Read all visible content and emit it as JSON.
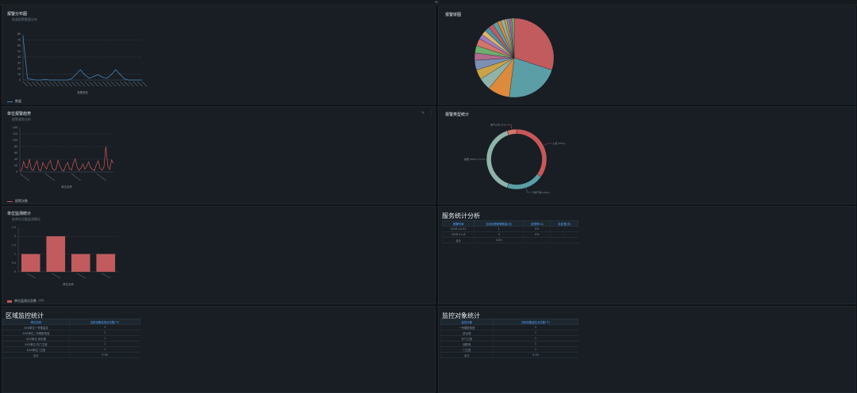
{
  "panels": {
    "alarm_distribution": {
      "title": "报警分布图",
      "subtitle": "各类报警数量分布",
      "xlabel": "报警类型",
      "legend": "数量"
    },
    "alarm_pie": {
      "title": "报警饼图"
    },
    "unit_alarm_trend": {
      "title": "单位报警趋势",
      "subtitle": "报警趋势分析",
      "xlabel": "单位名称",
      "legend": "报警次数"
    },
    "alarm_type_stats": {
      "title": "报警类型统计",
      "labels": [
        "火警 (35%)",
        "可燃气体 (20%)",
        "故障 (40%)",
        "电气火灾 (5%)"
      ]
    },
    "unit_monitor_stats": {
      "title": "单位监测统计",
      "subtitle": "各单位设备监测情况",
      "xlabel": "单位名称",
      "legend": "单位监测点总数（个）"
    },
    "service_stats": {
      "title": "服务统计分析",
      "headers": [
        "报警时间",
        "当前处理报警数量(次)",
        "处理率(%)",
        "未处理(次)"
      ],
      "rows": [
        [
          "2018-10-31",
          "1",
          "0%",
          "-"
        ],
        [
          "2018-11-6",
          "3",
          "0%",
          "-"
        ]
      ],
      "total": [
        "合计",
        "4.00",
        "",
        ""
      ]
    },
    "region_monitor_stats": {
      "title": "区域监控统计",
      "headers": [
        "单位名称",
        "当前设备监测点位数(个)"
      ],
      "rows": [
        [
          "XXX单位一号楼监控",
          "1"
        ],
        [
          "XXX单位二号楼配电室",
          "1"
        ],
        [
          "XXX单位-综合楼",
          "1"
        ],
        [
          "XXX单位-东门卫室",
          "1"
        ],
        [
          "XXX单位门卫室",
          "1"
        ]
      ],
      "total": [
        "合计",
        "5.00"
      ]
    },
    "monitor_object_stats": {
      "title": "监控对象统计",
      "headers": [
        "监控对象",
        "当前设备监控点位数(个)"
      ],
      "rows": [
        [
          "一号楼配电室",
          "1"
        ],
        [
          "综合楼",
          "1"
        ],
        [
          "东门卫室",
          "1"
        ],
        [
          "西配电",
          "1"
        ],
        [
          "门卫室",
          "1"
        ]
      ],
      "total": [
        "合计",
        "5.00"
      ]
    }
  },
  "colors": {
    "line_blue": "#4a7fb0",
    "line_red": "#c9575a",
    "bar_red": "#c25b5e",
    "teal": "#5b9ea6",
    "pie_palette": [
      "#c25b5e",
      "#5b9ea6",
      "#dd8a3c",
      "#8fb3a8",
      "#c9a24a",
      "#7d8fb3",
      "#b06a8c",
      "#6fae6f",
      "#d4756b",
      "#9a7fc0",
      "#e0b26a",
      "#4f8fa0"
    ]
  },
  "chart_data": [
    {
      "type": "line",
      "name": "alarm_distribution",
      "x_count": 28,
      "values": [
        76,
        3,
        1,
        0,
        0,
        1,
        0,
        0,
        0,
        0,
        0,
        2,
        10,
        18,
        9,
        3,
        6,
        9,
        5,
        3,
        9,
        18,
        10,
        2,
        0,
        0,
        0,
        0
      ],
      "ylim": [
        0,
        80
      ],
      "yticks": [
        "80",
        "70",
        "60",
        "50",
        "40",
        "30",
        "20",
        "10",
        "0"
      ],
      "legend": "数量"
    },
    {
      "type": "pie",
      "name": "alarm_pie",
      "values": [
        30,
        22,
        9,
        5,
        4,
        4,
        3,
        3,
        3,
        2,
        2,
        2,
        2,
        2,
        1.5,
        1.5,
        1,
        1,
        1,
        1
      ]
    },
    {
      "type": "line",
      "name": "unit_alarm_trend",
      "values": [
        3,
        7,
        33,
        15,
        12,
        40,
        8,
        5,
        22,
        35,
        6,
        4,
        30,
        18,
        9,
        27,
        36,
        12,
        5,
        10,
        38,
        18,
        7,
        3,
        20,
        30,
        10,
        6,
        28,
        42,
        15,
        5,
        12,
        25,
        9,
        18,
        32,
        14,
        8,
        4,
        22,
        35,
        11,
        6,
        15,
        80,
        20,
        8,
        38,
        28
      ],
      "ylim": [
        0,
        140
      ],
      "yticks": [
        "140",
        "120",
        "100",
        "80",
        "60",
        "40",
        "20",
        "0"
      ],
      "legend": "报警次数"
    },
    {
      "type": "pie",
      "name": "alarm_type_stats",
      "categories": [
        "火警",
        "可燃气体",
        "故障",
        "电气火灾"
      ],
      "values": [
        35,
        20,
        40,
        5
      ]
    },
    {
      "type": "bar",
      "name": "unit_monitor_stats",
      "values": [
        1,
        2,
        1,
        1
      ],
      "ylim": [
        0,
        2.5
      ],
      "yticks": [
        "2.5",
        "2",
        "1.5",
        "1",
        "0.5",
        "0"
      ],
      "legend": "单位监测点总数（个）"
    }
  ]
}
